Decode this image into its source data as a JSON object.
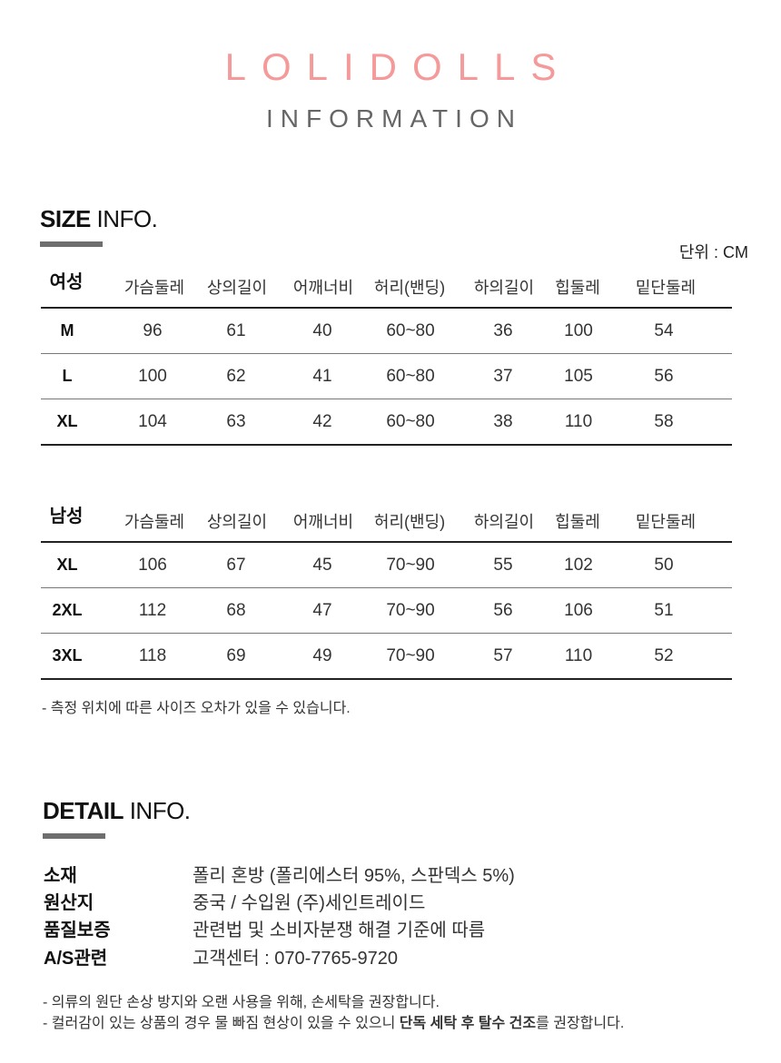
{
  "header": {
    "brand": "LOLIDOLLS",
    "subtitle": "INFORMATION"
  },
  "size_info": {
    "title_bold": "SIZE",
    "title_light": "INFO.",
    "unit": "단위 : CM",
    "columns": [
      "가슴둘레",
      "상의길이",
      "어깨너비",
      "허리(밴딩)",
      "하의길이",
      "힙둘레",
      "밑단둘레"
    ],
    "tables": [
      {
        "group": "여성",
        "rows": [
          [
            "M",
            "96",
            "61",
            "40",
            "60~80",
            "36",
            "100",
            "54"
          ],
          [
            "L",
            "100",
            "62",
            "41",
            "60~80",
            "37",
            "105",
            "56"
          ],
          [
            "XL",
            "104",
            "63",
            "42",
            "60~80",
            "38",
            "110",
            "58"
          ]
        ]
      },
      {
        "group": "남성",
        "rows": [
          [
            "XL",
            "106",
            "67",
            "45",
            "70~90",
            "55",
            "102",
            "50"
          ],
          [
            "2XL",
            "112",
            "68",
            "47",
            "70~90",
            "56",
            "106",
            "51"
          ],
          [
            "3XL",
            "118",
            "69",
            "49",
            "70~90",
            "57",
            "110",
            "52"
          ]
        ]
      }
    ],
    "note": "- 측정 위치에 따른 사이즈 오차가 있을 수 있습니다."
  },
  "detail_info": {
    "title_bold": "DETAIL",
    "title_light": "INFO.",
    "items": [
      {
        "label": "소재",
        "value": "폴리 혼방 (폴리에스터 95%, 스판덱스 5%)"
      },
      {
        "label": "원산지",
        "value": "중국 / 수입원 (주)세인트레이드"
      },
      {
        "label": "품질보증",
        "value": "관련법 및 소비자분쟁 해결 기준에 따름"
      },
      {
        "label": "A/S관련",
        "value": "고객센터 : 070-7765-9720"
      }
    ],
    "note1": "- 의류의 원단 손상 방지와 오랜 사용을 위해, 손세탁을 권장합니다.",
    "note2_pre": "- 컬러감이 있는 상품의 경우 물 빠짐 현상이 있을 수 있으니 ",
    "note2_bold": "단독 세탁 후 탈수 건조",
    "note2_post": "를 권장합니다."
  }
}
